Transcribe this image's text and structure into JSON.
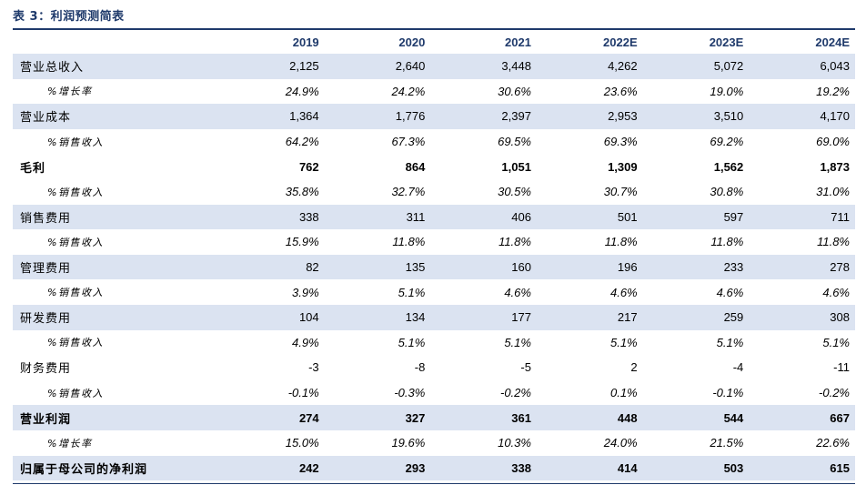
{
  "title": "表 3：利润预测简表",
  "columns": [
    "2019",
    "2020",
    "2021",
    "2022E",
    "2023E",
    "2024E"
  ],
  "rows": [
    {
      "label": "营业总收入",
      "values": [
        "2,125",
        "2,640",
        "3,448",
        "4,262",
        "5,072",
        "6,043"
      ],
      "type": "main",
      "shade": true
    },
    {
      "label": "%增长率",
      "values": [
        "24.9%",
        "24.2%",
        "30.6%",
        "23.6%",
        "19.0%",
        "19.2%"
      ],
      "type": "sub",
      "shade": false
    },
    {
      "label": "营业成本",
      "values": [
        "1,364",
        "1,776",
        "2,397",
        "2,953",
        "3,510",
        "4,170"
      ],
      "type": "main",
      "shade": true
    },
    {
      "label": "%销售收入",
      "values": [
        "64.2%",
        "67.3%",
        "69.5%",
        "69.3%",
        "69.2%",
        "69.0%"
      ],
      "type": "sub",
      "shade": false
    },
    {
      "label": "毛利",
      "values": [
        "762",
        "864",
        "1,051",
        "1,309",
        "1,562",
        "1,873"
      ],
      "type": "bold",
      "shade": false
    },
    {
      "label": "%销售收入",
      "values": [
        "35.8%",
        "32.7%",
        "30.5%",
        "30.7%",
        "30.8%",
        "31.0%"
      ],
      "type": "sub",
      "shade": false
    },
    {
      "label": "销售费用",
      "values": [
        "338",
        "311",
        "406",
        "501",
        "597",
        "711"
      ],
      "type": "main",
      "shade": true
    },
    {
      "label": "%销售收入",
      "values": [
        "15.9%",
        "11.8%",
        "11.8%",
        "11.8%",
        "11.8%",
        "11.8%"
      ],
      "type": "sub",
      "shade": false
    },
    {
      "label": "管理费用",
      "values": [
        "82",
        "135",
        "160",
        "196",
        "233",
        "278"
      ],
      "type": "main",
      "shade": true
    },
    {
      "label": "%销售收入",
      "values": [
        "3.9%",
        "5.1%",
        "4.6%",
        "4.6%",
        "4.6%",
        "4.6%"
      ],
      "type": "sub",
      "shade": false
    },
    {
      "label": "研发费用",
      "values": [
        "104",
        "134",
        "177",
        "217",
        "259",
        "308"
      ],
      "type": "main",
      "shade": true
    },
    {
      "label": "%销售收入",
      "values": [
        "4.9%",
        "5.1%",
        "5.1%",
        "5.1%",
        "5.1%",
        "5.1%"
      ],
      "type": "sub",
      "shade": false
    },
    {
      "label": "财务费用",
      "values": [
        "-3",
        "-8",
        "-5",
        "2",
        "-4",
        "-11"
      ],
      "type": "main",
      "shade": false
    },
    {
      "label": "%销售收入",
      "values": [
        "-0.1%",
        "-0.3%",
        "-0.2%",
        "0.1%",
        "-0.1%",
        "-0.2%"
      ],
      "type": "sub",
      "shade": false
    },
    {
      "label": "营业利润",
      "values": [
        "274",
        "327",
        "361",
        "448",
        "544",
        "667"
      ],
      "type": "bold",
      "shade": true
    },
    {
      "label": "%增长率",
      "values": [
        "15.0%",
        "19.6%",
        "10.3%",
        "24.0%",
        "21.5%",
        "22.6%"
      ],
      "type": "sub",
      "shade": false
    },
    {
      "label": "归属于母公司的净利润",
      "values": [
        "242",
        "293",
        "338",
        "414",
        "503",
        "615"
      ],
      "type": "bold",
      "shade": true
    }
  ]
}
